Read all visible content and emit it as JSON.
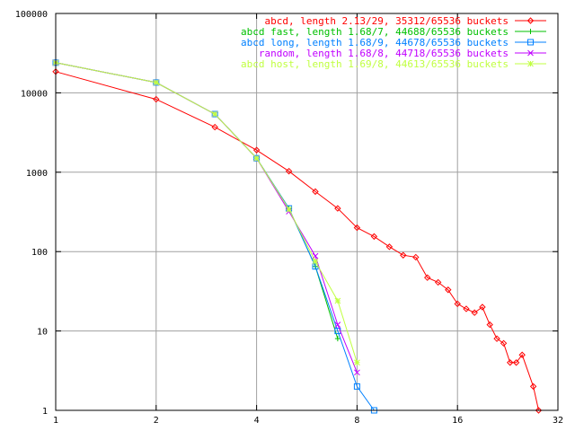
{
  "chart_data": {
    "type": "line",
    "title": "",
    "xlabel": "",
    "ylabel": "",
    "x_scale": "log2",
    "y_scale": "log10",
    "xlim": [
      1,
      32
    ],
    "ylim": [
      1,
      100000
    ],
    "x_ticks": [
      1,
      2,
      4,
      8,
      16,
      32
    ],
    "x_tick_labels": [
      "1",
      "2",
      "4",
      "8",
      "16",
      "32"
    ],
    "y_ticks": [
      1,
      10,
      100,
      1000,
      10000,
      100000
    ],
    "y_tick_labels": [
      "1",
      "10",
      "100",
      "1000",
      "10000",
      "100000"
    ],
    "grid": true,
    "legend_position": "top-right",
    "series": [
      {
        "name": "abcd, length 2.13/29, 35312/65536 buckets",
        "color": "#ff0000",
        "marker": "diamond",
        "points": [
          [
            1,
            18500
          ],
          [
            2,
            8300
          ],
          [
            3,
            3700
          ],
          [
            4,
            1900
          ],
          [
            5,
            1030
          ],
          [
            6,
            570
          ],
          [
            7,
            350
          ],
          [
            8,
            200
          ],
          [
            9,
            155
          ],
          [
            10,
            115
          ],
          [
            11,
            90
          ],
          [
            12,
            85
          ],
          [
            13,
            47
          ],
          [
            14,
            41
          ],
          [
            15,
            33
          ],
          [
            16,
            22
          ],
          [
            17,
            19
          ],
          [
            18,
            17
          ],
          [
            19,
            20
          ],
          [
            20,
            12
          ],
          [
            21,
            8
          ],
          [
            22,
            7
          ],
          [
            23,
            4
          ],
          [
            24,
            4
          ],
          [
            25,
            5
          ],
          [
            27,
            2
          ],
          [
            28,
            1
          ]
        ]
      },
      {
        "name": "abcd fast, length 1.68/7, 44688/65536 buckets",
        "color": "#00c000",
        "marker": "plus",
        "points": [
          [
            1,
            24000
          ],
          [
            2,
            13500
          ],
          [
            3,
            5400
          ],
          [
            4,
            1500
          ],
          [
            5,
            350
          ],
          [
            6,
            65
          ],
          [
            7,
            8
          ]
        ]
      },
      {
        "name": "abcd long, length 1.68/9, 44678/65536 buckets",
        "color": "#0080ff",
        "marker": "square",
        "points": [
          [
            1,
            24000
          ],
          [
            2,
            13500
          ],
          [
            3,
            5400
          ],
          [
            4,
            1500
          ],
          [
            5,
            350
          ],
          [
            6,
            65
          ],
          [
            7,
            10
          ],
          [
            8,
            2
          ],
          [
            9,
            1
          ]
        ]
      },
      {
        "name": "random, length 1.68/8, 44718/65536 buckets",
        "color": "#c000ff",
        "marker": "cross",
        "points": [
          [
            1,
            24000
          ],
          [
            2,
            13500
          ],
          [
            3,
            5400
          ],
          [
            4,
            1500
          ],
          [
            5,
            320
          ],
          [
            6,
            88
          ],
          [
            7,
            12
          ],
          [
            8,
            3
          ]
        ]
      },
      {
        "name": "abcd host, length 1.69/8, 44613/65536 buckets",
        "color": "#c0ff40",
        "marker": "star",
        "points": [
          [
            1,
            24000
          ],
          [
            2,
            13500
          ],
          [
            3,
            5400
          ],
          [
            4,
            1500
          ],
          [
            5,
            340
          ],
          [
            6,
            75
          ],
          [
            7,
            24
          ],
          [
            8,
            4
          ]
        ]
      }
    ]
  }
}
